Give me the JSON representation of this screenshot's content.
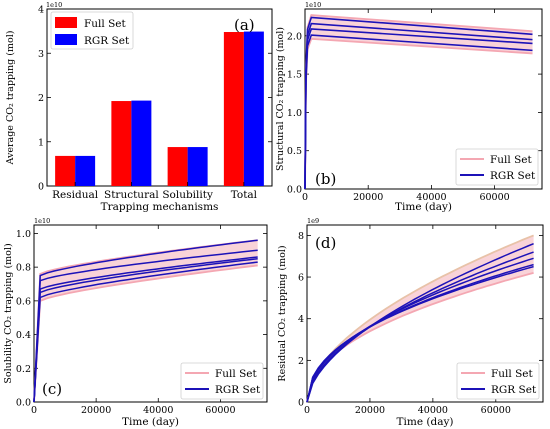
{
  "figure": {
    "panels": [
      {
        "id": "a",
        "label": "(a)",
        "exponent": "1e10",
        "legend": [
          "Full Set",
          "RGR Set"
        ]
      },
      {
        "id": "b",
        "label": "(b)",
        "exponent": "1e10",
        "legend": [
          "Full Set",
          "RGR Set"
        ]
      },
      {
        "id": "c",
        "label": "(c)",
        "exponent": "1e10",
        "legend": [
          "Full Set",
          "RGR Set"
        ]
      },
      {
        "id": "d",
        "label": "(d)",
        "exponent": "1e9",
        "legend": [
          "Full Set",
          "RGR Set"
        ]
      }
    ]
  },
  "colors": {
    "full_set_bar": "#ff0000",
    "rgr_set_bar": "#0000ff",
    "full_set_line": "#f4a7b2",
    "full_set_band": "#f9d3d8",
    "rgr_set_line": "#1c12b8"
  },
  "chart_data": [
    {
      "type": "bar",
      "panel": "a",
      "title": "",
      "xlabel": "Trapping mechanisms",
      "ylabel": "Average CO₂ trapping (mol)",
      "categories": [
        "Residual",
        "Structural",
        "Solubility",
        "Total"
      ],
      "series": [
        {
          "name": "Full Set",
          "values": [
            0.68,
            1.92,
            0.88,
            3.48
          ]
        },
        {
          "name": "RGR Set",
          "values": [
            0.68,
            1.93,
            0.88,
            3.49
          ]
        }
      ],
      "ylim": [
        0,
        4
      ],
      "yticks": [
        "0",
        "1",
        "2",
        "3",
        "4"
      ],
      "y_multiplier": "1e10",
      "legend_position": "top-left"
    },
    {
      "type": "line",
      "panel": "b",
      "title": "",
      "xlabel": "Time (day)",
      "ylabel": "Structural CO₂ trapping (mol)",
      "xlim": [
        0,
        75000
      ],
      "xticks": [
        "0",
        "20000",
        "40000",
        "60000"
      ],
      "ylim": [
        0,
        2.35
      ],
      "yticks": [
        "0.0",
        "0.5",
        "1.0",
        "1.5",
        "2.0"
      ],
      "y_multiplier": "1e10",
      "legend_position": "bottom-right",
      "series": [
        {
          "name": "Full Set",
          "x": [
            0,
            2000,
            72000
          ],
          "lines": [
            [
              0,
              2.27,
              2.06
            ],
            [
              0,
              1.96,
              1.77
            ]
          ]
        },
        {
          "name": "RGR Set",
          "x": [
            0,
            2000,
            72000
          ],
          "lines": [
            [
              0,
              2.24,
              2.02
            ],
            [
              0,
              2.16,
              1.95
            ],
            [
              0,
              2.09,
              1.9
            ],
            [
              0,
              2.01,
              1.81
            ]
          ]
        }
      ]
    },
    {
      "type": "line",
      "panel": "c",
      "title": "",
      "xlabel": "Time (day)",
      "ylabel": "Solubility CO₂ trapping (mol)",
      "xlim": [
        0,
        75000
      ],
      "xticks": [
        "0",
        "20000",
        "40000",
        "60000"
      ],
      "ylim": [
        0,
        1.05
      ],
      "yticks": [
        "0.0",
        "0.2",
        "0.4",
        "0.6",
        "0.8",
        "1.0"
      ],
      "y_multiplier": "1e10",
      "legend_position": "bottom-right",
      "series": [
        {
          "name": "Full Set",
          "x": [
            0,
            2000,
            72000
          ],
          "lines": [
            [
              0,
              0.76,
              0.96
            ],
            [
              0,
              0.6,
              0.81
            ]
          ]
        },
        {
          "name": "RGR Set",
          "x": [
            0,
            2000,
            72000
          ],
          "lines": [
            [
              0,
              0.75,
              0.96
            ],
            [
              0,
              0.72,
              0.9
            ],
            [
              0,
              0.67,
              0.86
            ],
            [
              0,
              0.65,
              0.85
            ],
            [
              0,
              0.62,
              0.83
            ]
          ]
        }
      ]
    },
    {
      "type": "line",
      "panel": "d",
      "title": "",
      "xlabel": "Time (day)",
      "ylabel": "Residual CO₂ trapping (mol)",
      "xlim": [
        0,
        75000
      ],
      "xticks": [
        "0",
        "20000",
        "40000",
        "60000"
      ],
      "ylim": [
        0,
        8.5
      ],
      "yticks": [
        "0",
        "2",
        "4",
        "6",
        "8"
      ],
      "y_multiplier": "1e9",
      "legend_position": "bottom-right",
      "series": [
        {
          "name": "Full Set",
          "x_end": 72000,
          "end_values": [
            8.0,
            6.2
          ]
        },
        {
          "name": "RGR Set",
          "x_end": 72000,
          "end_values": [
            7.6,
            7.2,
            6.9,
            6.6,
            6.5
          ]
        }
      ]
    }
  ]
}
